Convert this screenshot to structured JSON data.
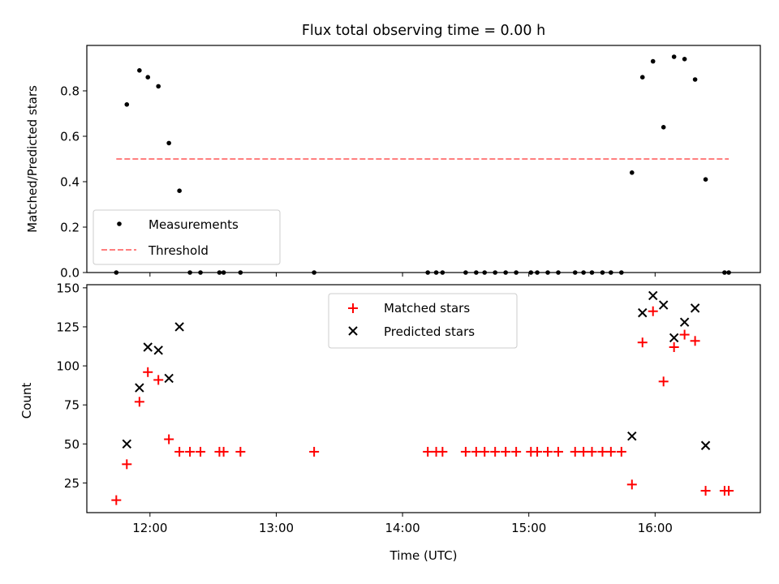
{
  "chart_data": [
    {
      "type": "scatter",
      "title": "Flux total observing time = 0.00 h",
      "xlabel": "",
      "ylabel": "Matched/Predicted stars",
      "ylim": [
        0,
        1.0
      ],
      "yticks": [
        "0.0",
        "0.2",
        "0.4",
        "0.6",
        "0.8"
      ],
      "legend_position": "lower-left",
      "series": [
        {
          "name": "Measurements",
          "color": "#000000",
          "points": [
            [
              "11:44",
              0.0
            ],
            [
              "11:49",
              0.74
            ],
            [
              "11:55",
              0.89
            ],
            [
              "11:59",
              0.86
            ],
            [
              "12:04",
              0.82
            ],
            [
              "12:09",
              0.57
            ],
            [
              "12:14",
              0.36
            ],
            [
              "12:19",
              0.0
            ],
            [
              "12:24",
              0.0
            ],
            [
              "12:33",
              0.0
            ],
            [
              "12:35",
              0.0
            ],
            [
              "12:43",
              0.0
            ],
            [
              "13:18",
              0.0
            ],
            [
              "14:12",
              0.0
            ],
            [
              "14:16",
              0.0
            ],
            [
              "14:19",
              0.0
            ],
            [
              "14:30",
              0.0
            ],
            [
              "14:35",
              0.0
            ],
            [
              "14:39",
              0.0
            ],
            [
              "14:44",
              0.0
            ],
            [
              "14:49",
              0.0
            ],
            [
              "14:54",
              0.0
            ],
            [
              "15:01",
              0.0
            ],
            [
              "15:04",
              0.0
            ],
            [
              "15:09",
              0.0
            ],
            [
              "15:14",
              0.0
            ],
            [
              "15:22",
              0.0
            ],
            [
              "15:26",
              0.0
            ],
            [
              "15:30",
              0.0
            ],
            [
              "15:35",
              0.0
            ],
            [
              "15:39",
              0.0
            ],
            [
              "15:44",
              0.0
            ],
            [
              "15:49",
              0.44
            ],
            [
              "15:54",
              0.86
            ],
            [
              "15:59",
              0.93
            ],
            [
              "16:04",
              0.64
            ],
            [
              "16:09",
              0.95
            ],
            [
              "16:14",
              0.94
            ],
            [
              "16:19",
              0.85
            ],
            [
              "16:24",
              0.41
            ],
            [
              "16:33",
              0.0
            ],
            [
              "16:35",
              0.0
            ]
          ]
        },
        {
          "name": "Threshold",
          "color": "#ff7f7f",
          "style": "dashed",
          "x": [
            "11:44",
            "16:35"
          ],
          "value": 0.5
        }
      ]
    },
    {
      "type": "scatter",
      "xlabel": "Time (UTC)",
      "ylabel": "Count",
      "ylim": [
        6,
        152
      ],
      "yticks": [
        "25",
        "50",
        "75",
        "100",
        "125",
        "150"
      ],
      "xticks": [
        "12:00",
        "13:00",
        "14:00",
        "15:00",
        "16:00"
      ],
      "xlim": [
        "11:30",
        "16:50"
      ],
      "legend_position": "upper-center",
      "series": [
        {
          "name": "Matched stars",
          "color": "#ff0000",
          "marker": "plus",
          "points": [
            [
              "11:44",
              14
            ],
            [
              "11:49",
              37
            ],
            [
              "11:55",
              77
            ],
            [
              "11:59",
              96
            ],
            [
              "12:04",
              91
            ],
            [
              "12:09",
              53
            ],
            [
              "12:14",
              45
            ],
            [
              "12:19",
              45
            ],
            [
              "12:24",
              45
            ],
            [
              "12:33",
              45
            ],
            [
              "12:35",
              45
            ],
            [
              "12:43",
              45
            ],
            [
              "13:18",
              45
            ],
            [
              "14:12",
              45
            ],
            [
              "14:16",
              45
            ],
            [
              "14:19",
              45
            ],
            [
              "14:30",
              45
            ],
            [
              "14:35",
              45
            ],
            [
              "14:39",
              45
            ],
            [
              "14:44",
              45
            ],
            [
              "14:49",
              45
            ],
            [
              "14:54",
              45
            ],
            [
              "15:01",
              45
            ],
            [
              "15:04",
              45
            ],
            [
              "15:09",
              45
            ],
            [
              "15:14",
              45
            ],
            [
              "15:22",
              45
            ],
            [
              "15:26",
              45
            ],
            [
              "15:30",
              45
            ],
            [
              "15:35",
              45
            ],
            [
              "15:39",
              45
            ],
            [
              "15:44",
              45
            ],
            [
              "15:49",
              24
            ],
            [
              "15:54",
              115
            ],
            [
              "15:59",
              135
            ],
            [
              "16:04",
              90
            ],
            [
              "16:09",
              112
            ],
            [
              "16:14",
              120
            ],
            [
              "16:19",
              116
            ],
            [
              "16:24",
              20
            ],
            [
              "16:33",
              20
            ],
            [
              "16:35",
              20
            ]
          ]
        },
        {
          "name": "Predicted stars",
          "color": "#000000",
          "marker": "x",
          "points": [
            [
              "11:49",
              50
            ],
            [
              "11:55",
              86
            ],
            [
              "11:59",
              112
            ],
            [
              "12:04",
              110
            ],
            [
              "12:09",
              92
            ],
            [
              "12:14",
              125
            ],
            [
              "15:49",
              55
            ],
            [
              "15:54",
              134
            ],
            [
              "15:59",
              145
            ],
            [
              "16:04",
              139
            ],
            [
              "16:09",
              118
            ],
            [
              "16:14",
              128
            ],
            [
              "16:19",
              137
            ],
            [
              "16:24",
              49
            ]
          ]
        }
      ]
    }
  ]
}
